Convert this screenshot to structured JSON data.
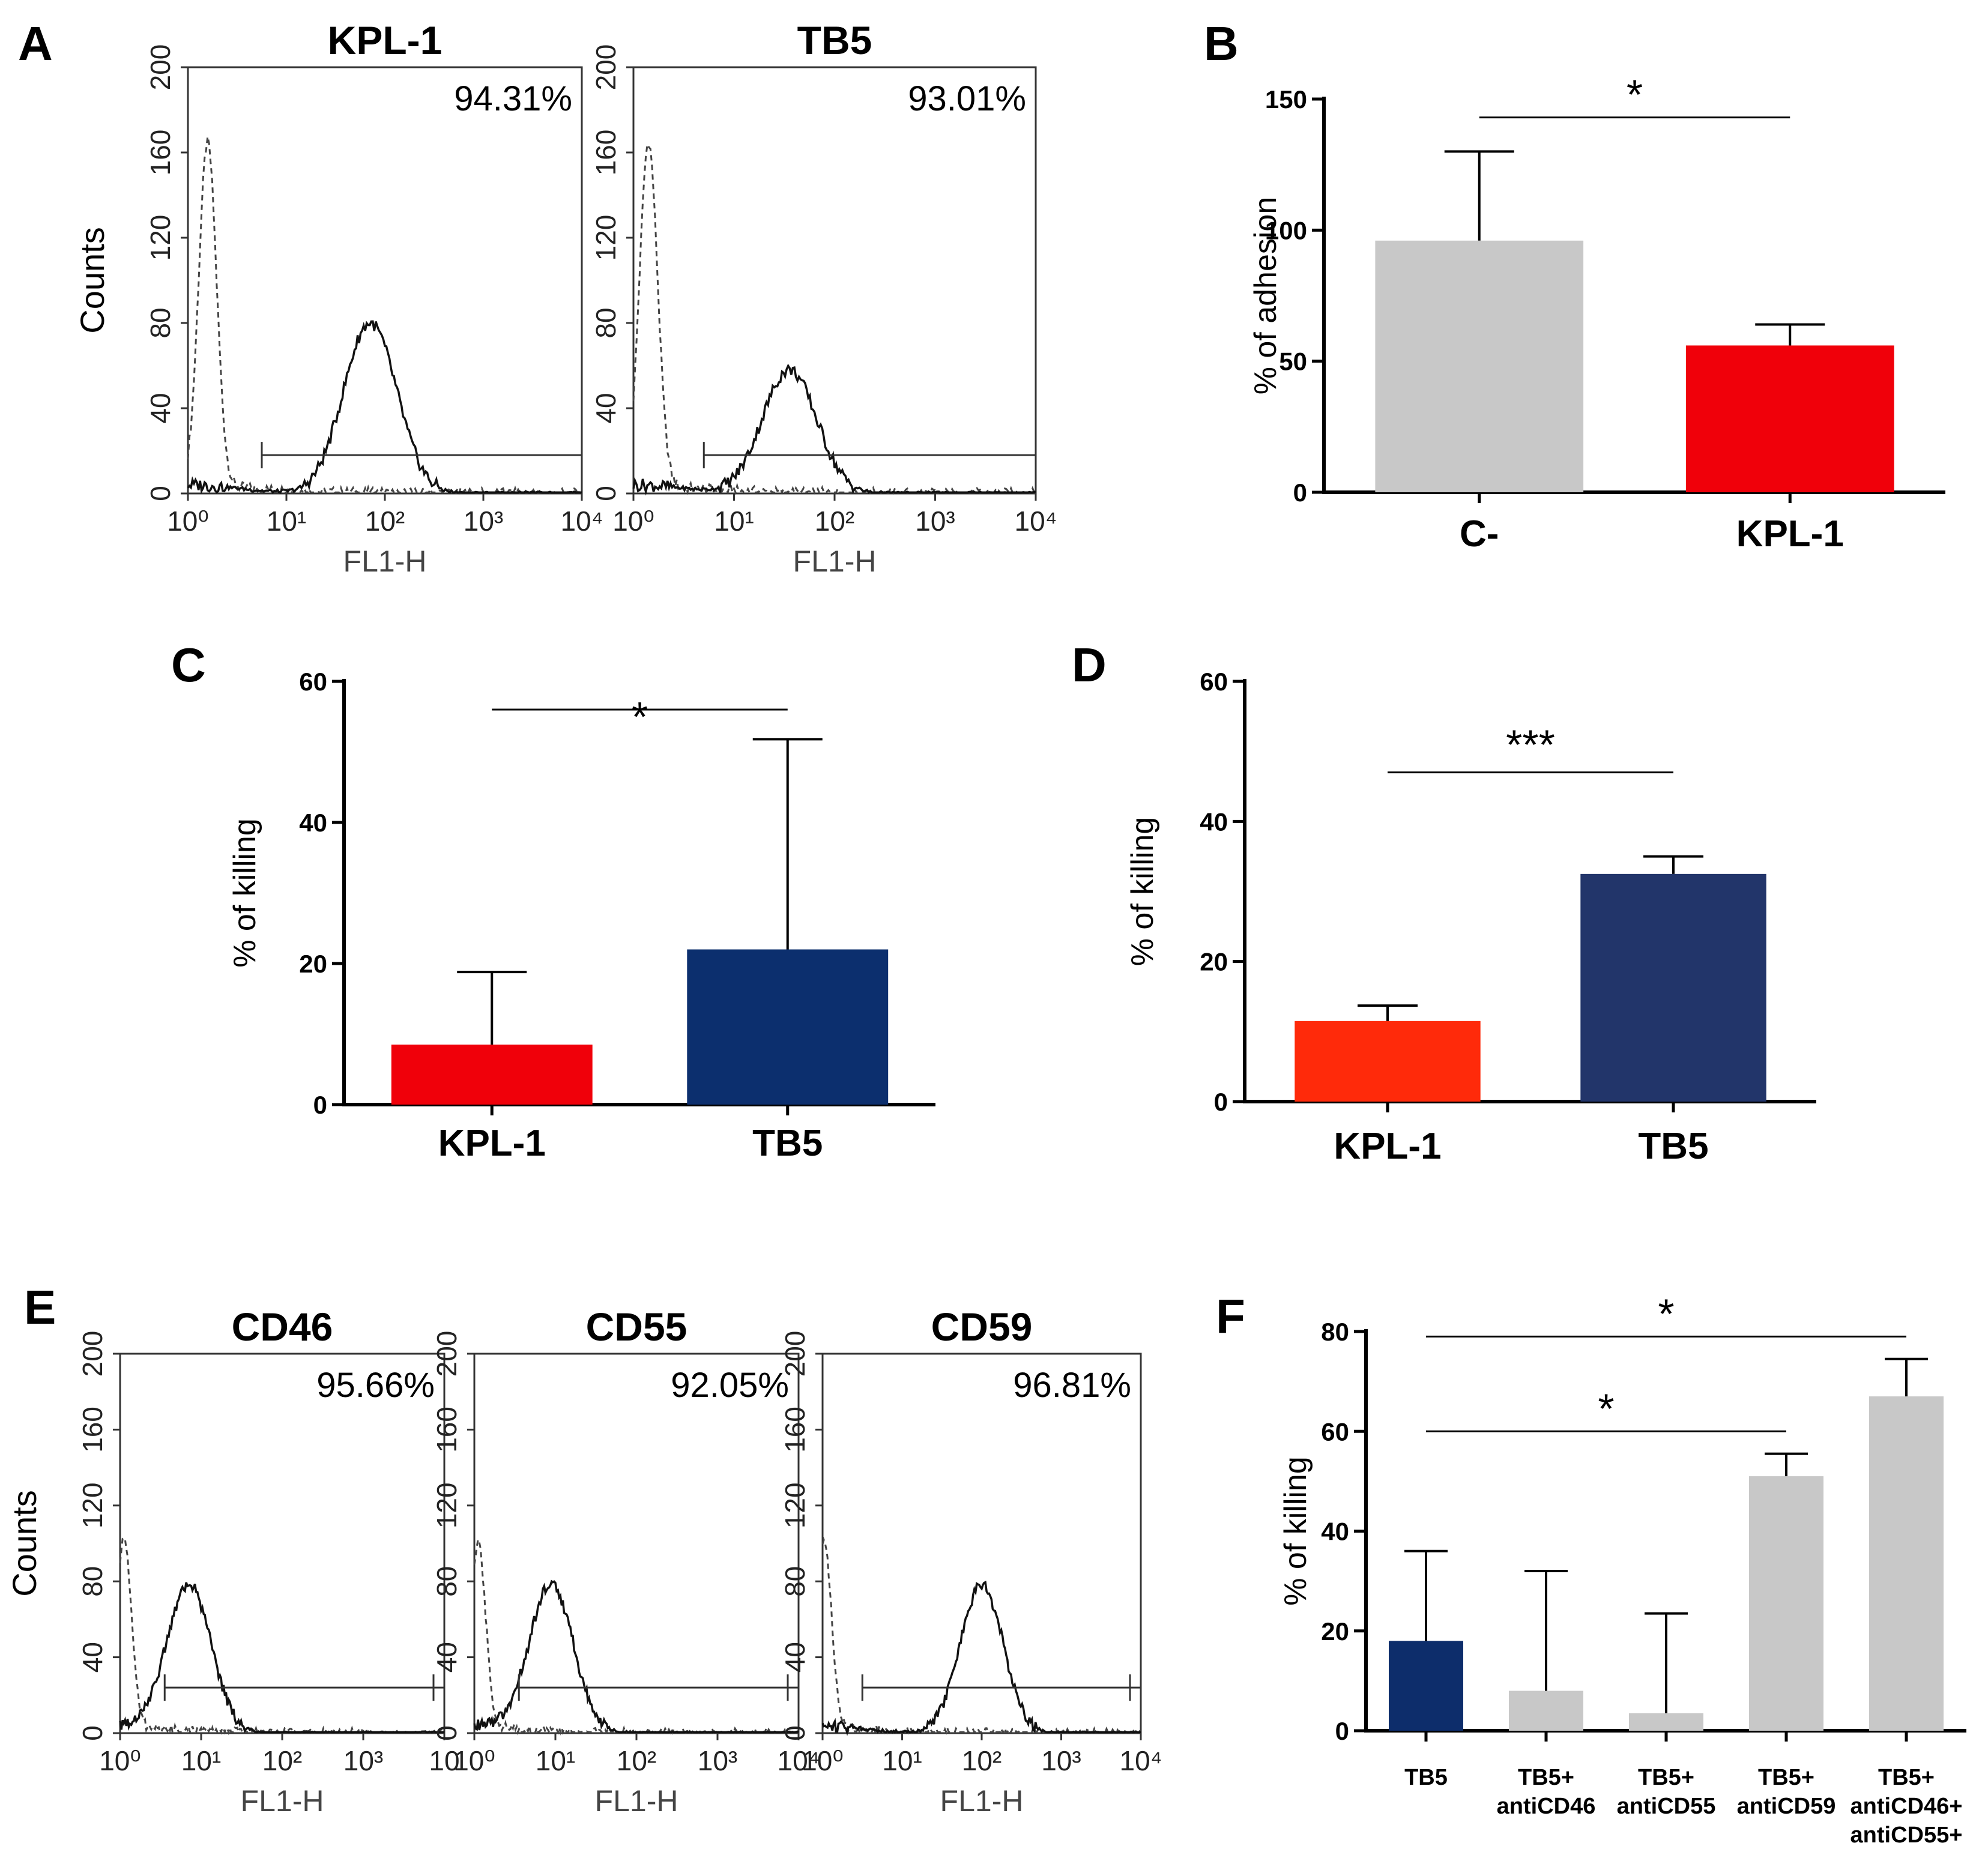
{
  "chart_data": [
    {
      "panel": "A",
      "type": "histogram",
      "plots": [
        {
          "title": "KPL-1",
          "percent": "94.31%",
          "ylabel": "Counts",
          "xlabel": "FL1-H",
          "ylim": [
            0,
            200
          ],
          "xlim_log10": [
            0,
            4
          ],
          "control_peak_log10": 0.2,
          "control_peak_count": 160,
          "stained_peak_log10": 1.85,
          "stained_peak_count": 80,
          "gate_start_log10": 0.75
        },
        {
          "title": "TB5",
          "percent": "93.01%",
          "ylabel": "",
          "xlabel": "FL1-H",
          "ylim": [
            0,
            200
          ],
          "xlim_log10": [
            0,
            4
          ],
          "control_peak_log10": 0.15,
          "control_peak_count": 160,
          "stained_peak_log10": 1.55,
          "stained_peak_count": 58,
          "gate_start_log10": 0.7
        }
      ],
      "yticks": [
        "0",
        "40",
        "80",
        "120",
        "160",
        "200"
      ],
      "xticks": [
        "10⁰",
        "10¹",
        "10²",
        "10³",
        "10⁴"
      ]
    },
    {
      "panel": "B",
      "type": "bar",
      "categories": [
        "C-",
        "KPL-1"
      ],
      "values": [
        96,
        56
      ],
      "errors": [
        34,
        8
      ],
      "colors": [
        "#c8c8c8",
        "#f0000a"
      ],
      "ylabel": "% of adhesion",
      "ylim": [
        0,
        150
      ],
      "yticks": [
        "0",
        "50",
        "100",
        "150"
      ],
      "significance": [
        {
          "from": 0,
          "to": 1,
          "label": "*",
          "y": 143
        }
      ]
    },
    {
      "panel": "C",
      "type": "bar",
      "categories": [
        "KPL-1",
        "TB5"
      ],
      "values": [
        8.5,
        22
      ],
      "errors": [
        10.3,
        29.8
      ],
      "colors": [
        "#f0000a",
        "#0c2f6e"
      ],
      "ylabel": "% of killing",
      "ylim": [
        0,
        60
      ],
      "yticks": [
        "0",
        "20",
        "40",
        "60"
      ],
      "significance": [
        {
          "from": 0,
          "to": 1,
          "label": "*",
          "y": 56
        }
      ]
    },
    {
      "panel": "D",
      "type": "bar",
      "categories": [
        "KPL-1",
        "TB5"
      ],
      "values": [
        11.5,
        32.5
      ],
      "errors": [
        2.2,
        2.5
      ],
      "colors": [
        "#ff2a0a",
        "#22356a"
      ],
      "ylabel": "% of killing",
      "ylim": [
        0,
        60
      ],
      "yticks": [
        "0",
        "20",
        "40",
        "60"
      ],
      "significance": [
        {
          "from": 0,
          "to": 1,
          "label": "***",
          "y": 47
        }
      ]
    },
    {
      "panel": "E",
      "type": "histogram",
      "plots": [
        {
          "title": "CD46",
          "percent": "95.66%",
          "ylabel": "Counts",
          "xlabel": "FL1-H",
          "ylim": [
            0,
            200
          ],
          "xlim_log10": [
            0,
            4
          ],
          "control_peak_log10": 0.05,
          "control_peak_count": 98,
          "stained_peak_log10": 0.85,
          "stained_peak_count": 78,
          "gate_start_log10": 0.55
        },
        {
          "title": "CD55",
          "percent": "92.05%",
          "ylabel": "",
          "xlabel": "FL1-H",
          "ylim": [
            0,
            200
          ],
          "xlim_log10": [
            0,
            4
          ],
          "control_peak_log10": 0.05,
          "control_peak_count": 95,
          "stained_peak_log10": 0.95,
          "stained_peak_count": 78,
          "gate_start_log10": 0.55
        },
        {
          "title": "CD59",
          "percent": "96.81%",
          "ylabel": "",
          "xlabel": "FL1-H",
          "ylim": [
            0,
            200
          ],
          "xlim_log10": [
            0,
            4
          ],
          "control_peak_log10": 0.02,
          "control_peak_count": 98,
          "stained_peak_log10": 2.0,
          "stained_peak_count": 78,
          "gate_start_log10": 0.5
        }
      ],
      "yticks": [
        "0",
        "40",
        "80",
        "120",
        "160",
        "200"
      ],
      "xticks": [
        [
          "10⁰",
          "10¹",
          "10²",
          "10³",
          "10"
        ],
        [
          "10⁰",
          "10¹",
          "10²",
          "10³",
          "10⁴"
        ],
        [
          "10⁰",
          "10¹",
          "10²",
          "10³",
          "10⁴"
        ]
      ]
    },
    {
      "panel": "F",
      "type": "bar",
      "categories": [
        [
          "TB5"
        ],
        [
          "TB5+",
          "antiCD46"
        ],
        [
          "TB5+",
          "antiCD55"
        ],
        [
          "TB5+",
          "antiCD59"
        ],
        [
          "TB5+",
          "antiCD46+",
          "antiCD55+"
        ]
      ],
      "values": [
        18,
        8,
        3.5,
        51,
        67
      ],
      "errors": [
        18,
        24,
        20,
        4.5,
        7.5
      ],
      "colors": [
        "#0d2d6b",
        "#c8c8c8",
        "#c8c8c8",
        "#c8c8c8",
        "#c8c8c8"
      ],
      "ylabel": "% of killing",
      "ylim": [
        0,
        80
      ],
      "yticks": [
        "0",
        "20",
        "40",
        "60",
        "80"
      ],
      "significance": [
        {
          "from": 0,
          "to": 4,
          "label": "*",
          "y": 79
        },
        {
          "from": 0,
          "to": 3,
          "label": "*",
          "y": 60
        }
      ]
    }
  ]
}
